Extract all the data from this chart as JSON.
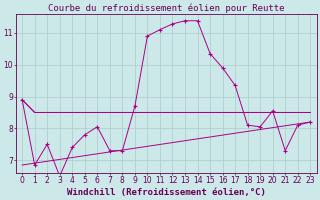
{
  "title": "Courbe du refroidissement éolien pour Reutte",
  "xlabel": "Windchill (Refroidissement éolien,°C)",
  "bg_color": "#cce8e8",
  "grid_color": "#aacccc",
  "line_color": "#aa0088",
  "x_ticks": [
    0,
    1,
    2,
    3,
    4,
    5,
    6,
    7,
    8,
    9,
    10,
    11,
    12,
    13,
    14,
    15,
    16,
    17,
    18,
    19,
    20,
    21,
    22,
    23
  ],
  "y_ticks": [
    7,
    8,
    9,
    10,
    11
  ],
  "xlim": [
    -0.5,
    23.5
  ],
  "ylim": [
    6.6,
    11.6
  ],
  "line1_x": [
    0,
    1,
    2,
    3,
    4,
    5,
    6,
    7,
    8,
    9,
    10,
    11,
    12,
    13,
    14,
    15,
    16,
    17,
    18,
    19,
    20,
    21,
    22,
    23
  ],
  "line1_y": [
    8.9,
    6.85,
    7.5,
    6.5,
    7.4,
    7.8,
    8.05,
    7.3,
    7.3,
    8.7,
    10.9,
    11.1,
    11.28,
    11.38,
    11.38,
    10.35,
    9.9,
    9.35,
    8.1,
    8.05,
    8.55,
    7.3,
    8.1,
    8.2
  ],
  "line2_x": [
    0,
    1,
    9,
    10,
    11,
    12,
    13,
    14,
    15,
    16,
    17,
    18,
    19,
    20,
    21,
    22,
    23
  ],
  "line2_y": [
    8.9,
    8.5,
    8.5,
    8.5,
    8.5,
    8.5,
    8.5,
    8.5,
    8.5,
    8.5,
    8.5,
    8.5,
    8.5,
    8.5,
    8.5,
    8.5,
    8.5
  ],
  "line3_x": [
    0,
    1,
    2,
    3,
    4,
    5,
    6,
    7,
    8,
    9,
    10,
    11,
    12,
    13,
    14,
    15,
    16,
    17,
    18,
    19,
    20,
    21,
    22,
    23
  ],
  "line3_y": [
    8.9,
    8.5,
    8.5,
    8.5,
    8.5,
    8.5,
    8.5,
    8.5,
    8.5,
    8.5,
    8.5,
    8.5,
    8.5,
    8.5,
    8.5,
    8.5,
    8.5,
    8.5,
    8.5,
    8.5,
    8.5,
    8.5,
    8.5,
    8.5
  ],
  "line4_x": [
    0,
    23
  ],
  "line4_y": [
    6.85,
    8.2
  ],
  "title_fontsize": 6.5,
  "xlabel_fontsize": 6.5,
  "tick_fontsize": 5.5
}
